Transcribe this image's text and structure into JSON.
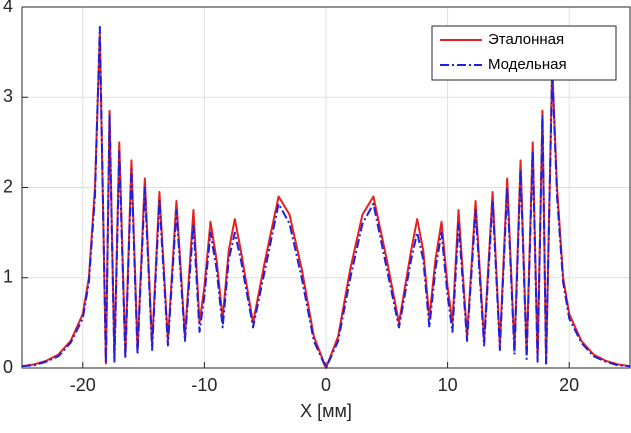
{
  "chart_data": {
    "type": "line",
    "xlabel": "X [мм]",
    "x": [
      -25,
      -24,
      -23,
      -22,
      -21,
      -20,
      -19.5,
      -19.0,
      -18.6,
      -18.1,
      -17.8,
      -17.4,
      -17.0,
      -16.5,
      -16.0,
      -15.5,
      -14.9,
      -14.3,
      -13.7,
      -13.0,
      -12.3,
      -11.6,
      -10.9,
      -10.4,
      -10,
      -9.5,
      -9,
      -8.5,
      -8,
      -7.5,
      -7,
      -6,
      -5,
      -3.9,
      -3,
      -2,
      -1,
      0,
      1,
      2,
      3,
      3.9,
      5,
      6,
      7,
      7.5,
      8,
      8.5,
      9,
      9.5,
      10,
      10.4,
      10.9,
      11.6,
      12.3,
      13.0,
      13.7,
      14.3,
      14.9,
      15.5,
      16.0,
      16.5,
      17.0,
      17.4,
      17.8,
      18.1,
      18.6,
      19.0,
      19.5,
      20,
      21,
      22,
      23,
      24,
      25
    ],
    "series": [
      {
        "name": "Эталонная",
        "color": "#e8201f",
        "dash": "solid",
        "values": [
          0.02,
          0.04,
          0.08,
          0.15,
          0.3,
          0.6,
          1.0,
          2.0,
          3.7,
          0.05,
          2.85,
          0.1,
          2.5,
          0.15,
          2.3,
          0.2,
          2.1,
          0.25,
          1.95,
          0.3,
          1.85,
          0.35,
          1.75,
          0.5,
          0.9,
          1.62,
          1.2,
          0.55,
          1.3,
          1.65,
          1.3,
          0.5,
          1.2,
          1.9,
          1.7,
          1.1,
          0.35,
          0,
          0.35,
          1.1,
          1.7,
          1.9,
          1.2,
          0.5,
          1.3,
          1.65,
          1.3,
          0.55,
          1.2,
          1.62,
          0.9,
          0.5,
          1.75,
          0.35,
          1.85,
          0.3,
          1.95,
          0.25,
          2.1,
          0.2,
          2.3,
          0.15,
          2.5,
          0.1,
          2.85,
          0.05,
          3.35,
          2.0,
          1.0,
          0.6,
          0.3,
          0.15,
          0.08,
          0.04,
          0.02
        ]
      },
      {
        "name": "Модельная",
        "color": "#1f1fe0",
        "dash": "dashdot",
        "values": [
          0.02,
          0.03,
          0.07,
          0.13,
          0.28,
          0.55,
          0.95,
          1.9,
          3.78,
          0.05,
          2.8,
          0.07,
          2.4,
          0.1,
          2.2,
          0.15,
          2.0,
          0.2,
          1.85,
          0.25,
          1.75,
          0.3,
          1.6,
          0.4,
          0.8,
          1.5,
          1.1,
          0.45,
          1.2,
          1.5,
          1.2,
          0.45,
          1.1,
          1.82,
          1.6,
          1.0,
          0.3,
          0,
          0.3,
          1.0,
          1.6,
          1.82,
          1.1,
          0.45,
          1.2,
          1.5,
          1.2,
          0.45,
          1.1,
          1.5,
          0.8,
          0.4,
          1.6,
          0.3,
          1.75,
          0.25,
          1.85,
          0.2,
          2.0,
          0.15,
          2.2,
          0.1,
          2.4,
          0.07,
          2.8,
          0.05,
          3.3,
          1.9,
          0.95,
          0.55,
          0.28,
          0.13,
          0.07,
          0.03,
          0.02
        ]
      }
    ],
    "xlim": [
      -25,
      25
    ],
    "xticks": [
      -20,
      -10,
      0,
      10,
      20
    ],
    "ylim": [
      0,
      4
    ],
    "yticks": [
      0,
      1,
      2,
      3,
      4
    ],
    "grid": true,
    "legend": "northeast"
  }
}
